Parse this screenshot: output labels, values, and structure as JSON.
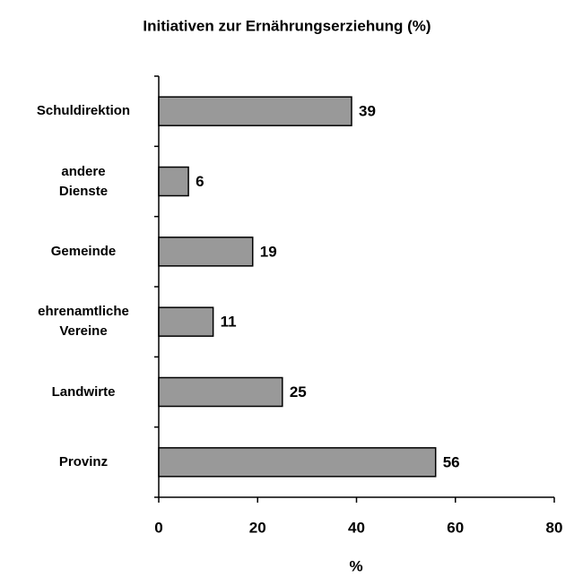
{
  "chart_data": {
    "type": "bar",
    "orientation": "horizontal",
    "title": "Initiativen zur Ernährungserziehung (%)",
    "x_label": "%",
    "categories": [
      "Schuldirektion",
      "andere\nDienste",
      "Gemeinde",
      "ehrenamtliche\nVereine",
      "Landwirte",
      "Provinz"
    ],
    "values": [
      39,
      6,
      19,
      11,
      25,
      56
    ],
    "color": "#999999",
    "xlim": [
      0,
      80
    ],
    "xticks": [
      0,
      20,
      40,
      60,
      80
    ],
    "grid": false
  }
}
